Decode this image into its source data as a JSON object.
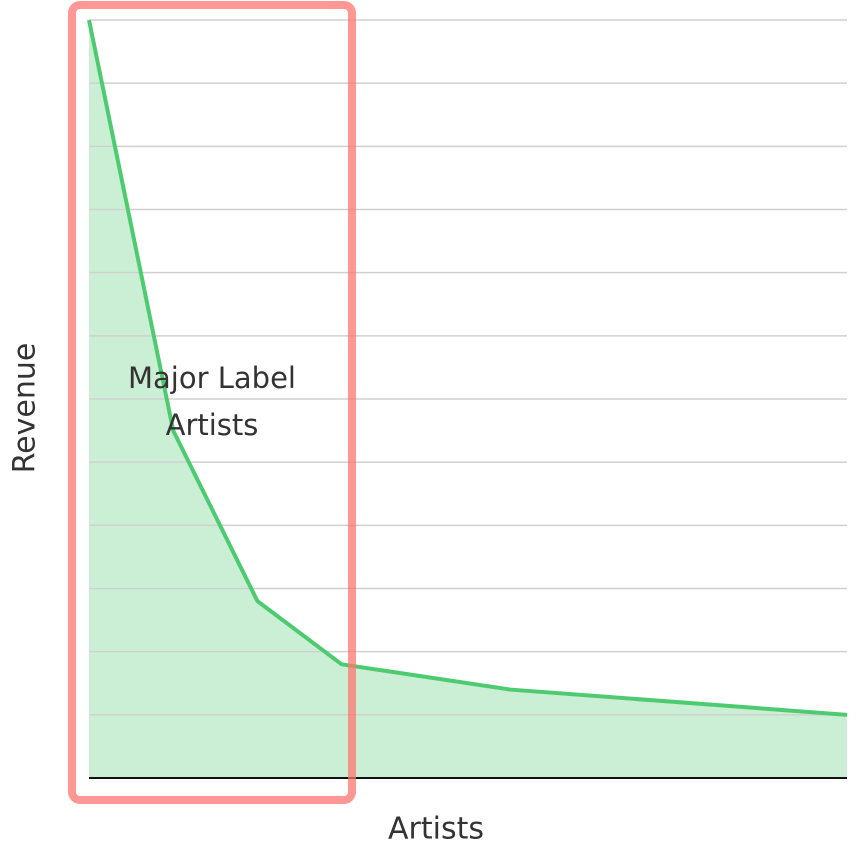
{
  "chart_data": {
    "type": "area",
    "x_label": "Artists",
    "y_label": "Revenue",
    "annotation": [
      "Major Label",
      "Artists"
    ],
    "x": [
      0,
      1,
      2,
      3,
      5,
      9
    ],
    "series": [
      {
        "color": "#4ecb71",
        "values": [
          12,
          5.5,
          2.8,
          1.8,
          1.4,
          1.0
        ]
      }
    ],
    "xlim": [
      0,
      9
    ],
    "ylim": [
      0,
      12
    ],
    "yticks": [
      0,
      1,
      2,
      3,
      4,
      5,
      6,
      7,
      8,
      9,
      10,
      11,
      12
    ],
    "grid": true
  }
}
